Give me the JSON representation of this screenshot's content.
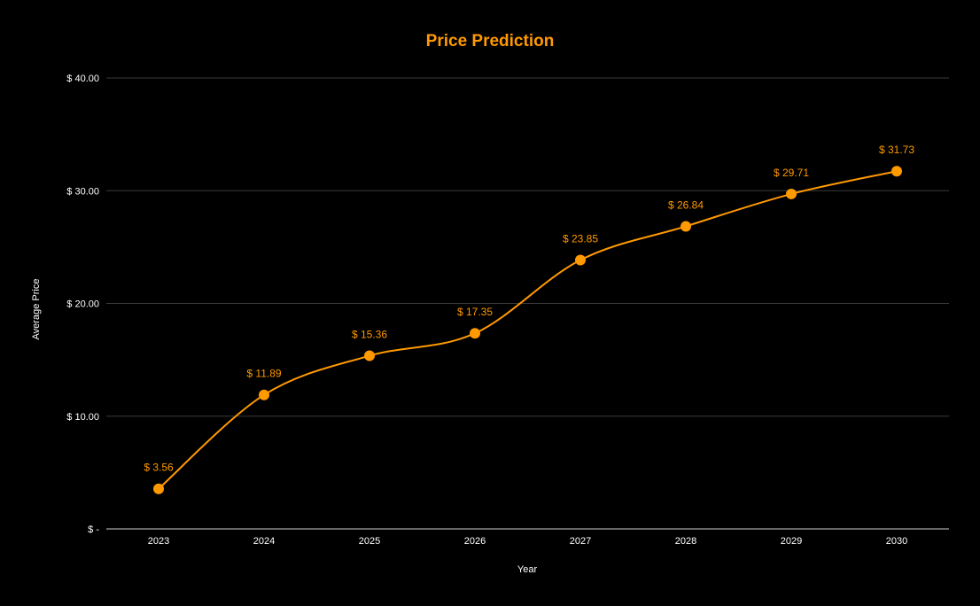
{
  "chart_data": {
    "type": "line",
    "title": "Price Prediction",
    "xlabel": "Year",
    "ylabel": "Average Price",
    "categories": [
      "2023",
      "2024",
      "2025",
      "2026",
      "2027",
      "2028",
      "2029",
      "2030"
    ],
    "series": [
      {
        "values": [
          3.56,
          11.89,
          15.36,
          17.35,
          23.85,
          26.84,
          29.71,
          31.73
        ],
        "data_labels": [
          "$ 3.56",
          "$ 11.89",
          "$ 15.36",
          "$ 17.35",
          "$ 23.85",
          "$ 26.84",
          "$ 29.71",
          "$ 31.73"
        ]
      }
    ],
    "yticks": [
      0,
      10,
      20,
      30,
      40
    ],
    "ytick_labels": [
      "$ -",
      "$ 10.00",
      "$ 20.00",
      "$ 30.00",
      "$ 40.00"
    ],
    "ylim": [
      0,
      40
    ],
    "grid": true,
    "smooth": true,
    "colors": {
      "background": "#000000",
      "series": "#ff9900",
      "title": "#ff9900",
      "grid": "#3a3a3a",
      "baseline": "#cccccc",
      "text": "#ffffff"
    }
  }
}
